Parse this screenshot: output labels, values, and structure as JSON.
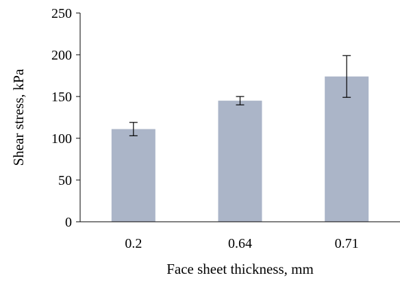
{
  "chart_data": {
    "type": "bar",
    "categories": [
      "0.2",
      "0.64",
      "0.71"
    ],
    "values": [
      111,
      145,
      174
    ],
    "error": [
      8,
      5,
      25
    ],
    "xlabel": "Face sheet thickness, mm",
    "ylabel": "Shear stress, kPa",
    "ylim": [
      0,
      250
    ],
    "yticks": [
      0,
      50,
      100,
      150,
      200,
      250
    ],
    "grid": false,
    "legend": "none",
    "bar_color": "#abb5c8"
  }
}
